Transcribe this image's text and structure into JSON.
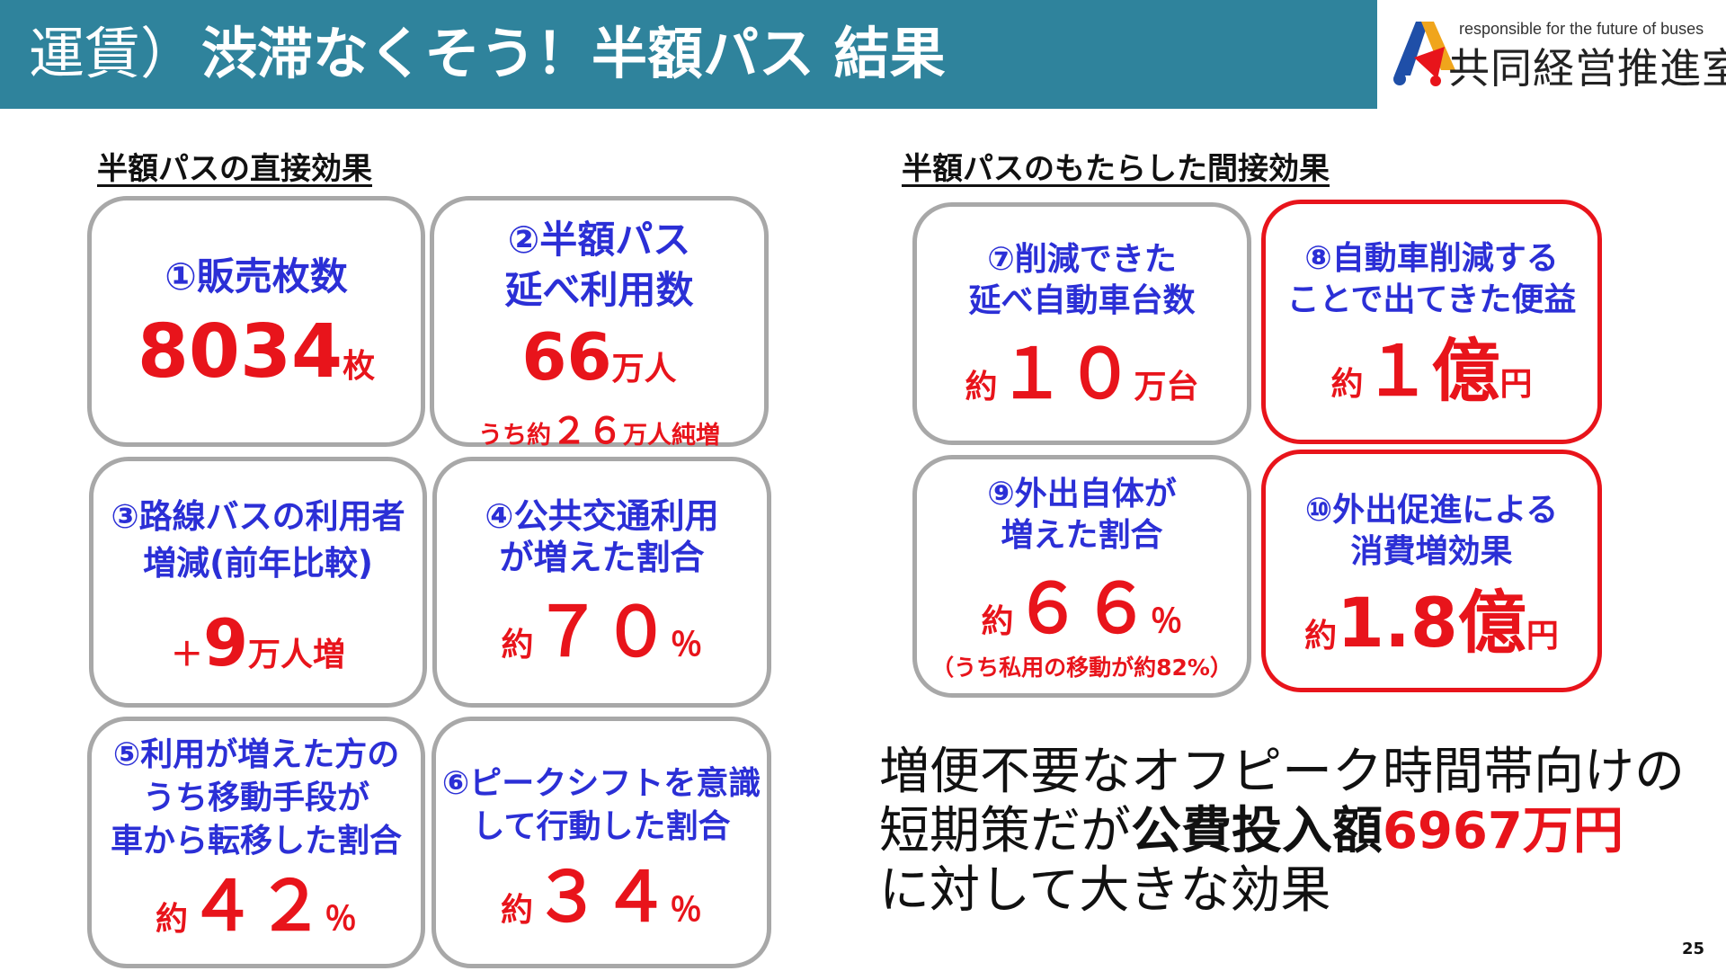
{
  "header": {
    "title_prefix": "運賃）",
    "title_main": "渋滞なくそう！半額パス 結果",
    "background": "#2f839c"
  },
  "logo": {
    "tagline": "responsible for the future of buses",
    "name": "共同経営推進室"
  },
  "sections": {
    "direct": "半額パスの直接効果",
    "indirect": "半額パスのもたらした間接効果"
  },
  "cards": [
    {
      "label": "①販売枚数",
      "value": "8034",
      "unit": "枚"
    },
    {
      "label": "②半額パス\n延べ利用数",
      "value": "66",
      "unit": "万人",
      "note_prefix": "うち約",
      "note_value": "２６",
      "note_suffix": "万人純増"
    },
    {
      "label": "③路線バスの利用者\n増減(前年比較)",
      "sign": "＋",
      "value": "9",
      "unit": "万人増"
    },
    {
      "label": "④公共交通利用\nが増えた割合",
      "prefix": "約",
      "value": "７０",
      "unit": "％"
    },
    {
      "label": "⑤利用が増えた方の\nうち移動手段が\n車から転移した割合",
      "prefix": "約",
      "value": "４２",
      "unit": "％"
    },
    {
      "label": "⑥ピークシフトを意識\nして行動した割合",
      "prefix": "約",
      "value": "３４",
      "unit": "％"
    },
    {
      "label": "⑦削減できた\n延べ自動車台数",
      "prefix": "約",
      "value": "１０",
      "unit": "万台"
    },
    {
      "label": "⑧自動車削減する\nことで出てきた便益",
      "prefix": "約",
      "value": "１億",
      "unit": "円"
    },
    {
      "label": "⑨外出自体が\n増えた割合",
      "prefix": "約",
      "value": "６６",
      "unit": "％",
      "note": "（うち私用の移動が約82%）"
    },
    {
      "label": "⑩外出促進による\n消費増効果",
      "prefix": "約",
      "value": "1.8億",
      "unit": "円"
    }
  ],
  "summary": {
    "line1": "増便不要なオフピーク時間帯向けの",
    "line2_a": "短期策だが",
    "line2_b": "公費投入額",
    "line2_c": "6967万円",
    "line3": "に対して大きな効果"
  },
  "page_number": "25",
  "colors": {
    "accent_red": "#e8141b",
    "label_blue": "#2b2fd6",
    "card_border": "#a8a8a8"
  }
}
